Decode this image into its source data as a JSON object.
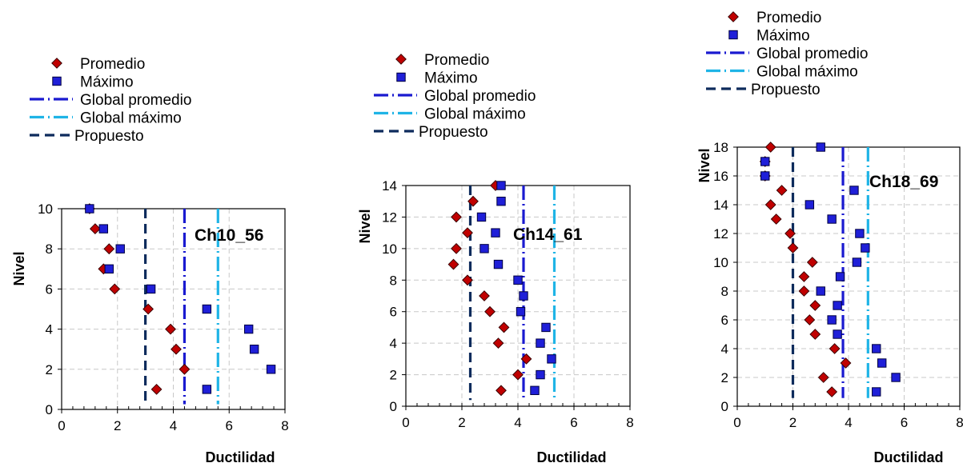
{
  "colors": {
    "promedio": "#c00000",
    "maximo": "#1f1fd8",
    "global_promedio": "#1a1ad0",
    "global_maximo": "#1fb4e6",
    "propuesto": "#0d2b5c",
    "grid": "#c8c8c8"
  },
  "chart_data": [
    {
      "type": "scatter",
      "name": "Ch10_56",
      "xlabel": "Ductilidad",
      "ylabel": "Nivel",
      "xlim": [
        0,
        8
      ],
      "ylim": [
        0,
        10
      ],
      "xticks": [
        0,
        2,
        4,
        6,
        8
      ],
      "yticks": [
        0,
        2,
        4,
        6,
        8,
        10
      ],
      "grid": true,
      "legend": {
        "position": "top",
        "entries": [
          "Promedio",
          "Máximo",
          "Global promedio",
          "Global máximo",
          "Propuesto"
        ]
      },
      "series": [
        {
          "name": "Promedio",
          "points": [
            [
              1.0,
              10
            ],
            [
              1.2,
              9
            ],
            [
              1.7,
              8
            ],
            [
              1.5,
              7
            ],
            [
              1.9,
              6
            ],
            [
              3.1,
              5
            ],
            [
              3.9,
              4
            ],
            [
              4.1,
              3
            ],
            [
              4.4,
              2
            ],
            [
              3.4,
              1
            ]
          ]
        },
        {
          "name": "Máximo",
          "points": [
            [
              1.0,
              10
            ],
            [
              1.5,
              9
            ],
            [
              2.1,
              8
            ],
            [
              1.7,
              7
            ],
            [
              3.2,
              6
            ],
            [
              5.2,
              5
            ],
            [
              6.7,
              4
            ],
            [
              6.9,
              3
            ],
            [
              7.5,
              2
            ],
            [
              5.2,
              1
            ]
          ]
        }
      ],
      "reference_lines": {
        "Global promedio": 4.4,
        "Global máximo": 5.6,
        "Propuesto": 3.0
      }
    },
    {
      "type": "scatter",
      "name": "Ch14_61",
      "xlabel": "Ductilidad",
      "ylabel": "Nivel",
      "xlim": [
        0,
        8
      ],
      "ylim": [
        0,
        14
      ],
      "xticks": [
        0,
        2,
        4,
        6,
        8
      ],
      "yticks": [
        0,
        2,
        4,
        6,
        8,
        10,
        12,
        14
      ],
      "grid": true,
      "legend": {
        "position": "top",
        "entries": [
          "Promedio",
          "Máximo",
          "Global promedio",
          "Global máximo",
          "Propuesto"
        ]
      },
      "series": [
        {
          "name": "Promedio",
          "points": [
            [
              3.2,
              14
            ],
            [
              2.4,
              13
            ],
            [
              1.8,
              12
            ],
            [
              2.2,
              11
            ],
            [
              1.8,
              10
            ],
            [
              1.7,
              9
            ],
            [
              2.2,
              8
            ],
            [
              2.8,
              7
            ],
            [
              3.0,
              6
            ],
            [
              3.5,
              5
            ],
            [
              3.3,
              4
            ],
            [
              4.3,
              3
            ],
            [
              4.0,
              2
            ],
            [
              3.4,
              1
            ]
          ]
        },
        {
          "name": "Máximo",
          "points": [
            [
              3.4,
              14
            ],
            [
              3.4,
              13
            ],
            [
              2.7,
              12
            ],
            [
              3.2,
              11
            ],
            [
              2.8,
              10
            ],
            [
              3.3,
              9
            ],
            [
              4.0,
              8
            ],
            [
              4.2,
              7
            ],
            [
              4.1,
              6
            ],
            [
              5.0,
              5
            ],
            [
              4.8,
              4
            ],
            [
              5.2,
              3
            ],
            [
              4.8,
              2
            ],
            [
              4.6,
              1
            ]
          ]
        }
      ],
      "reference_lines": {
        "Global promedio": 4.2,
        "Global máximo": 5.3,
        "Propuesto": 2.3
      }
    },
    {
      "type": "scatter",
      "name": "Ch18_69",
      "xlabel": "Ductilidad",
      "ylabel": "Nivel",
      "xlim": [
        0,
        8
      ],
      "ylim": [
        0,
        18
      ],
      "xticks": [
        0,
        2,
        4,
        6,
        8
      ],
      "yticks": [
        0,
        2,
        4,
        6,
        8,
        10,
        12,
        14,
        16,
        18
      ],
      "grid": true,
      "legend": {
        "position": "top",
        "entries": [
          "Promedio",
          "Máximo",
          "Global promedio",
          "Global máximo",
          "Propuesto"
        ]
      },
      "series": [
        {
          "name": "Promedio",
          "points": [
            [
              1.2,
              18
            ],
            [
              1.0,
              17
            ],
            [
              1.0,
              16
            ],
            [
              1.6,
              15
            ],
            [
              1.2,
              14
            ],
            [
              1.4,
              13
            ],
            [
              1.9,
              12
            ],
            [
              2.0,
              11
            ],
            [
              2.7,
              10
            ],
            [
              2.4,
              9
            ],
            [
              2.4,
              8
            ],
            [
              2.8,
              7
            ],
            [
              2.6,
              6
            ],
            [
              2.8,
              5
            ],
            [
              3.5,
              4
            ],
            [
              3.9,
              3
            ],
            [
              3.1,
              2
            ],
            [
              3.4,
              1
            ]
          ]
        },
        {
          "name": "Máximo",
          "points": [
            [
              3.0,
              18
            ],
            [
              1.0,
              17
            ],
            [
              1.0,
              16
            ],
            [
              4.2,
              15
            ],
            [
              2.6,
              14
            ],
            [
              3.4,
              13
            ],
            [
              4.4,
              12
            ],
            [
              4.6,
              11
            ],
            [
              4.3,
              10
            ],
            [
              3.7,
              9
            ],
            [
              3.0,
              8
            ],
            [
              3.6,
              7
            ],
            [
              3.4,
              6
            ],
            [
              3.6,
              5
            ],
            [
              5.0,
              4
            ],
            [
              5.2,
              3
            ],
            [
              5.7,
              2
            ],
            [
              5.0,
              1
            ]
          ]
        }
      ],
      "reference_lines": {
        "Global promedio": 3.8,
        "Global máximo": 4.7,
        "Propuesto": 2.0
      }
    }
  ]
}
